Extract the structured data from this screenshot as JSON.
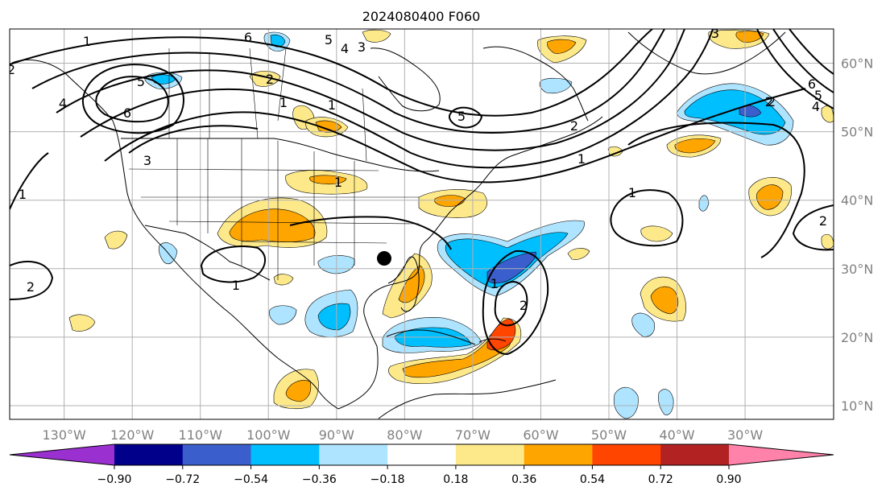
{
  "title": "2024080400 F060",
  "map": {
    "lon_range": [
      -138,
      -17
    ],
    "lat_range": [
      8,
      65
    ],
    "lon_tick_labels": [
      "130°W",
      "120°W",
      "110°W",
      "100°W",
      "90°W",
      "80°W",
      "70°W",
      "60°W",
      "50°W",
      "40°W",
      "30°W"
    ],
    "lat_tick_labels": [
      "10°N",
      "20°N",
      "30°N",
      "40°N",
      "50°N",
      "60°N"
    ],
    "grid": true,
    "contour_labels": [
      "6",
      "5",
      "4",
      "3",
      "6",
      "5",
      "4",
      "3",
      "2",
      "1",
      "6",
      "5",
      "4",
      "2",
      "1",
      "1",
      "2",
      "1",
      "1",
      "2",
      "2",
      "1",
      "3",
      "2",
      "2",
      "1",
      "1",
      "5",
      "2",
      "1"
    ],
    "marker": {
      "name": "storm-center-dot",
      "lon": -83,
      "lat": 31.5
    }
  },
  "colorbar": {
    "tick_labels": [
      "−0.90",
      "−0.72",
      "−0.54",
      "−0.36",
      "−0.18",
      "0.18",
      "0.36",
      "0.54",
      "0.72",
      "0.90"
    ],
    "ticks": [
      -0.9,
      -0.72,
      -0.54,
      -0.36,
      -0.18,
      0.18,
      0.36,
      0.54,
      0.72,
      0.9
    ],
    "colors": [
      "#9b30d0",
      "#00008b",
      "#3a5fcd",
      "#00bfff",
      "#aee4ff",
      "#ffffff",
      "#fde98a",
      "#ffa500",
      "#ff4500",
      "#b22222",
      "#ff82ab"
    ]
  }
}
